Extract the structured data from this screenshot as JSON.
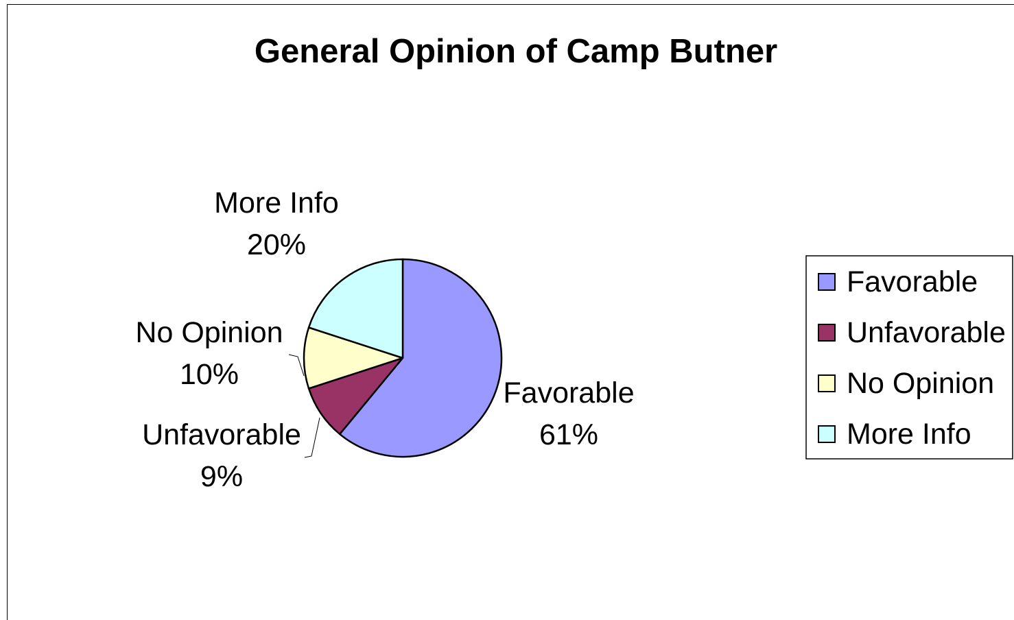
{
  "chart_data": {
    "type": "pie",
    "title": "General Opinion of Camp Butner",
    "start_angle_deg": 0,
    "direction": "clockwise",
    "legend_position": "right",
    "slices": [
      {
        "label": "Favorable",
        "value": 61,
        "display": "61%",
        "color": "#9999FF"
      },
      {
        "label": "Unfavorable",
        "value": 9,
        "display": "9%",
        "color": "#993366"
      },
      {
        "label": "No Opinion",
        "value": 10,
        "display": "10%",
        "color": "#FFFFCC"
      },
      {
        "label": "More Info",
        "value": 20,
        "display": "20%",
        "color": "#CCFFFF"
      }
    ]
  }
}
